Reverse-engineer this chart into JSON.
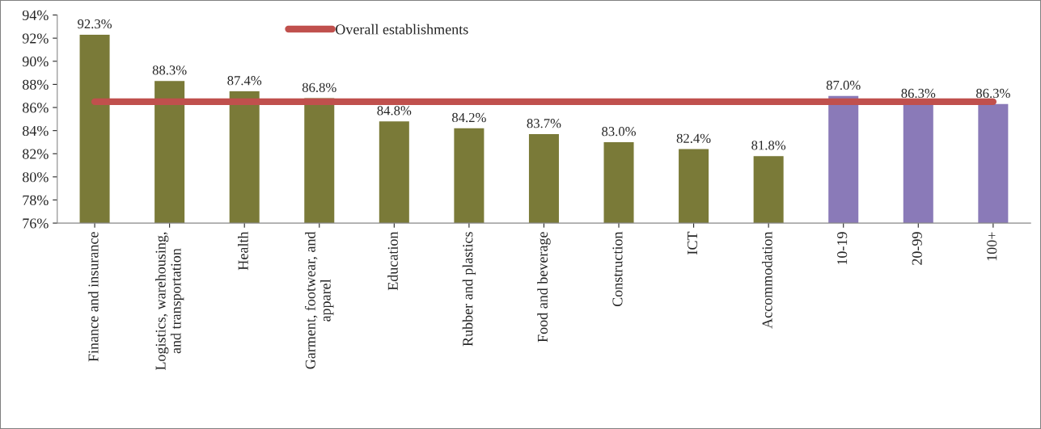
{
  "chart_data": {
    "type": "bar",
    "categories": [
      "Finance and insurance",
      "Logistics, warehousing, and transportation",
      "Health",
      "Garment, footwear, and apparel",
      "Education",
      "Rubber and plastics",
      "Food and beverage",
      "Construction",
      "ICT",
      "Accommodation",
      "10-19",
      "20-99",
      "100+"
    ],
    "series": [
      {
        "values": [
          92.3,
          88.3,
          87.4,
          86.8,
          84.8,
          84.2,
          83.7,
          83.0,
          82.4,
          81.8,
          87.0,
          86.3,
          86.3
        ],
        "colors": [
          "#7a7a38",
          "#7a7a38",
          "#7a7a38",
          "#7a7a38",
          "#7a7a38",
          "#7a7a38",
          "#7a7a38",
          "#7a7a38",
          "#7a7a38",
          "#7a7a38",
          "#8a7ab8",
          "#8a7ab8",
          "#8a7ab8"
        ],
        "value_labels": [
          "92.3%",
          "88.3%",
          "87.4%",
          "86.8%",
          "84.8%",
          "84.2%",
          "83.7%",
          "83.0%",
          "82.4%",
          "81.8%",
          "87.0%",
          "86.3%",
          "86.3%"
        ]
      },
      {
        "type": "line",
        "name": "Overall establishments",
        "color": "#c0504d",
        "values": [
          86.5,
          86.5,
          86.5,
          86.5,
          86.5,
          86.5,
          86.5,
          86.5,
          86.5,
          86.5,
          86.5,
          86.5,
          86.5
        ]
      }
    ],
    "ylim": [
      76,
      94
    ],
    "yticks": [
      {
        "value": 76,
        "label": "76%"
      },
      {
        "value": 78,
        "label": "78%"
      },
      {
        "value": 80,
        "label": "80%"
      },
      {
        "value": 82,
        "label": "82%"
      },
      {
        "value": 84,
        "label": "84%"
      },
      {
        "value": 86,
        "label": "86%"
      },
      {
        "value": 88,
        "label": "88%"
      },
      {
        "value": 90,
        "label": "90%"
      },
      {
        "value": 92,
        "label": "92%"
      },
      {
        "value": 94,
        "label": "94%"
      }
    ],
    "legend": "top",
    "grid": false,
    "marker": "none",
    "line_style": "solid"
  }
}
